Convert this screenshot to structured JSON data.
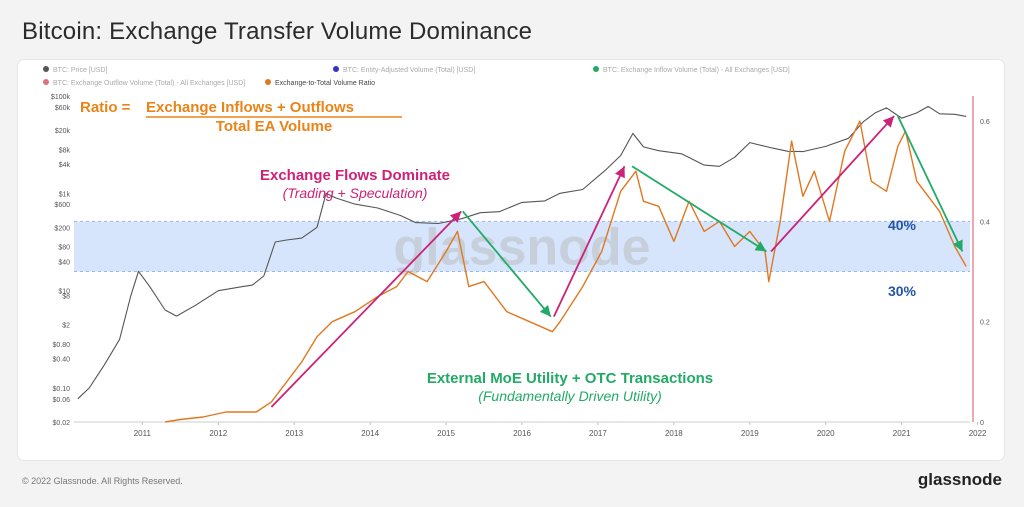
{
  "title": "Bitcoin: Exchange Transfer Volume Dominance",
  "footer": "© 2022 Glassnode. All Rights Reserved.",
  "brand": "glassnode",
  "watermark": "glassnode",
  "legend": [
    {
      "label": "BTC: Price [USD]",
      "color": "#555555"
    },
    {
      "label": "BTC: Entity-Adjusted Volume (Total) [USD]",
      "color": "#3333cc"
    },
    {
      "label": "BTC: Exchange Inflow Volume (Total) - All Exchanges [USD]",
      "color": "#22aa66"
    },
    {
      "label": "BTC: Exchange Outflow Volume (Total) - All Exchanges [USD]",
      "color": "#e07080"
    },
    {
      "label": "Exchange-to-Total Volume Ratio",
      "color": "#e07820"
    }
  ],
  "annotations": {
    "ratio_label": "Ratio =",
    "ratio_numerator": "Exchange Inflows + Outflows",
    "ratio_denominator": "Total EA Volume",
    "dominate_title": "Exchange Flows Dominate",
    "dominate_sub": "(Trading + Speculation)",
    "utility_title": "External MoE Utility + OTC Transactions",
    "utility_sub": "(Fundamentally Driven Utility)",
    "band_high": "40%",
    "band_low": "30%"
  },
  "colors": {
    "price": "#555555",
    "ratio": "#e07820",
    "magenta": "#cc2277",
    "green": "#22aa66",
    "band": "#cfe0fb",
    "annotation_orange": "#e88418",
    "annotation_blue": "#2255aa"
  },
  "chart_data": {
    "type": "line",
    "x_ticks": [
      "2011",
      "2012",
      "2013",
      "2014",
      "2015",
      "2016",
      "2017",
      "2018",
      "2019",
      "2020",
      "2021",
      "2022"
    ],
    "x_range": [
      2010.6,
      2022.4
    ],
    "y_left_ticks": [
      "$100k",
      "$60k",
      "$20k",
      "$8k",
      "$4k",
      "$1k",
      "$600",
      "$200",
      "$80",
      "$40",
      "$10",
      "$8",
      "$2",
      "$0.80",
      "$0.40",
      "$0.10",
      "$0.06",
      "$0.02"
    ],
    "y_left_tick_values": [
      100000,
      60000,
      20000,
      8000,
      4000,
      1000,
      600,
      200,
      80,
      40,
      10,
      8,
      2,
      0.8,
      0.4,
      0.1,
      0.06,
      0.02
    ],
    "y_left_range": [
      0.02,
      100000
    ],
    "y_left_scale": "log",
    "y_right_ticks": [
      "0.6",
      "0.4",
      "0.2",
      "0"
    ],
    "y_right_tick_values": [
      0.6,
      0.4,
      0.2,
      0
    ],
    "y_right_range": [
      0,
      0.65
    ],
    "band": [
      0.3,
      0.4
    ],
    "series": [
      {
        "name": "BTC: Price [USD]",
        "axis": "left",
        "x": [
          2010.65,
          2010.8,
          2011.0,
          2011.2,
          2011.35,
          2011.45,
          2011.6,
          2011.8,
          2011.95,
          2012.2,
          2012.5,
          2012.8,
          2012.95,
          2013.1,
          2013.25,
          2013.4,
          2013.6,
          2013.8,
          2013.92,
          2014.05,
          2014.3,
          2014.6,
          2014.9,
          2015.1,
          2015.4,
          2015.7,
          2015.95,
          2016.2,
          2016.5,
          2016.8,
          2017.0,
          2017.3,
          2017.6,
          2017.8,
          2017.96,
          2018.1,
          2018.3,
          2018.6,
          2018.9,
          2019.1,
          2019.3,
          2019.5,
          2019.8,
          2020.0,
          2020.2,
          2020.5,
          2020.8,
          2021.0,
          2021.15,
          2021.3,
          2021.5,
          2021.7,
          2021.85,
          2022.0,
          2022.2,
          2022.35
        ],
        "values": [
          0.06,
          0.1,
          0.3,
          1,
          8,
          25,
          12,
          4,
          3,
          5,
          10,
          12,
          13,
          20,
          100,
          110,
          120,
          200,
          1000,
          800,
          600,
          500,
          350,
          250,
          240,
          300,
          400,
          420,
          650,
          700,
          1000,
          1200,
          3000,
          6000,
          17000,
          9000,
          7500,
          6500,
          3800,
          3600,
          5500,
          11000,
          8500,
          7300,
          7200,
          9200,
          13500,
          30000,
          45000,
          57000,
          35000,
          45000,
          61000,
          43000,
          42000,
          38000
        ]
      },
      {
        "name": "Exchange-to-Total Volume Ratio",
        "axis": "right",
        "x": [
          2011.8,
          2012.0,
          2012.3,
          2012.6,
          2012.8,
          2013.0,
          2013.2,
          2013.4,
          2013.6,
          2013.8,
          2014.0,
          2014.3,
          2014.6,
          2014.85,
          2015.0,
          2015.25,
          2015.5,
          2015.65,
          2015.8,
          2016.0,
          2016.3,
          2016.6,
          2016.9,
          2017.0,
          2017.3,
          2017.55,
          2017.8,
          2018.0,
          2018.1,
          2018.3,
          2018.5,
          2018.7,
          2018.9,
          2019.1,
          2019.3,
          2019.5,
          2019.7,
          2019.75,
          2019.9,
          2020.05,
          2020.2,
          2020.35,
          2020.55,
          2020.75,
          2020.95,
          2021.1,
          2021.3,
          2021.45,
          2021.55,
          2021.7,
          2021.85,
          2022.0,
          2022.2,
          2022.35
        ],
        "values": [
          0,
          0.005,
          0.01,
          0.02,
          0.02,
          0.02,
          0.04,
          0.08,
          0.12,
          0.17,
          0.2,
          0.22,
          0.25,
          0.27,
          0.3,
          0.28,
          0.34,
          0.38,
          0.27,
          0.28,
          0.22,
          0.2,
          0.18,
          0.2,
          0.27,
          0.34,
          0.46,
          0.5,
          0.44,
          0.43,
          0.36,
          0.44,
          0.38,
          0.4,
          0.35,
          0.38,
          0.34,
          0.28,
          0.4,
          0.56,
          0.45,
          0.5,
          0.4,
          0.54,
          0.6,
          0.48,
          0.46,
          0.55,
          0.58,
          0.48,
          0.45,
          0.42,
          0.35,
          0.31
        ]
      }
    ],
    "arrows": [
      {
        "color": "magenta",
        "from": [
          2013.2,
          0.03
        ],
        "to": [
          2015.7,
          0.42
        ]
      },
      {
        "color": "green",
        "from": [
          2015.72,
          0.42
        ],
        "to": [
          2016.88,
          0.21
        ]
      },
      {
        "color": "magenta",
        "from": [
          2016.92,
          0.21
        ],
        "to": [
          2017.85,
          0.51
        ]
      },
      {
        "color": "green",
        "from": [
          2017.95,
          0.51
        ],
        "to": [
          2019.72,
          0.34
        ]
      },
      {
        "color": "magenta",
        "from": [
          2019.78,
          0.34
        ],
        "to": [
          2021.4,
          0.61
        ]
      },
      {
        "color": "green",
        "from": [
          2021.45,
          0.61
        ],
        "to": [
          2022.3,
          0.34
        ]
      }
    ]
  }
}
